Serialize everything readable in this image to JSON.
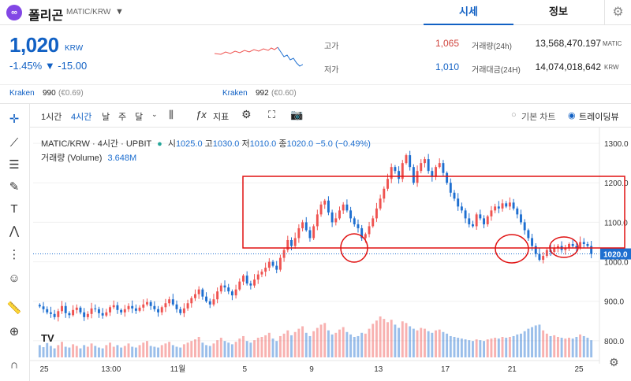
{
  "header": {
    "logo_text": "∞",
    "coin_name": "폴리곤",
    "pair": "MATIC/KRW",
    "tabs": [
      "시세",
      "정보"
    ]
  },
  "price": {
    "current": "1,020",
    "unit": "KRW",
    "change_pct": "-1.45%",
    "change_abs": "▼ -15.00"
  },
  "stats": {
    "high_label": "고가",
    "high": "1,065",
    "low_label": "저가",
    "low": "1,010",
    "vol_label": "거래량(24h)",
    "vol": "13,568,470.197",
    "vol_unit": "MATIC",
    "amt_label": "거래대금(24H)",
    "amt": "14,074,018,642",
    "amt_unit": "KRW"
  },
  "kraken": [
    {
      "name": "Kraken",
      "value": "990",
      "sub": "(€0.69)"
    },
    {
      "name": "Kraken",
      "value": "992",
      "sub": "(€0.60)"
    }
  ],
  "toolbar": {
    "interval_1h": "1시간",
    "interval_4h": "4시간",
    "day": "날",
    "week": "주",
    "month": "달",
    "indicator": "지표",
    "basic_chart": "기본 차트",
    "tradingview": "트레이딩뷰"
  },
  "legend": {
    "symbol": "MATIC/KRW · 4시간 · UPBIT",
    "o_label": "시",
    "o": "1025.0",
    "h_label": "고",
    "h": "1030.0",
    "l_label": "저",
    "l": "1010.0",
    "c_label": "종",
    "c": "1020.0",
    "chg": "−5.0 (−0.49%)",
    "volume_label": "거래량 (Volume)",
    "volume": "3.648M"
  },
  "colors": {
    "up": "#ef5350",
    "down": "#1e6fd0",
    "accent": "#1261c4",
    "annotation": "#e01010"
  },
  "chart_data": {
    "type": "candlestick",
    "ylim": [
      750,
      1340
    ],
    "y_ticks": [
      800,
      900,
      1000,
      1100,
      1200,
      1300
    ],
    "y_tick_labels": [
      "800.0",
      "900.0",
      "1000.0",
      "1100.0",
      "1200.0",
      "1300.0"
    ],
    "x_tick_labels": [
      "25",
      "13:00",
      "11월",
      "5",
      "9",
      "13",
      "17",
      "21",
      "25"
    ],
    "last_price_label": "1020.0",
    "last_price": 1020,
    "close": [
      887,
      880,
      872,
      868,
      860,
      875,
      888,
      870,
      865,
      878,
      884,
      872,
      860,
      868,
      882,
      880,
      870,
      864,
      872,
      885,
      890,
      878,
      872,
      880,
      888,
      882,
      876,
      884,
      892,
      898,
      888,
      880,
      872,
      885,
      895,
      905,
      892,
      880,
      870,
      882,
      895,
      908,
      918,
      930,
      912,
      900,
      892,
      905,
      925,
      940,
      935,
      925,
      915,
      930,
      950,
      965,
      945,
      940,
      955,
      968,
      975,
      985,
      1000,
      990,
      980,
      1010,
      1030,
      1055,
      1040,
      1060,
      1085,
      1100,
      1080,
      1060,
      1090,
      1120,
      1145,
      1155,
      1125,
      1100,
      1110,
      1130,
      1145,
      1130,
      1110,
      1095,
      1085,
      1060,
      1070,
      1090,
      1110,
      1135,
      1160,
      1185,
      1210,
      1240,
      1230,
      1210,
      1250,
      1270,
      1240,
      1200,
      1230,
      1250,
      1260,
      1230,
      1215,
      1240,
      1250,
      1225,
      1200,
      1175,
      1160,
      1140,
      1130,
      1110,
      1095,
      1090,
      1120,
      1110,
      1095,
      1115,
      1130,
      1140,
      1135,
      1148,
      1140,
      1150,
      1135,
      1120,
      1100,
      1080,
      1060,
      1040,
      1020,
      1005,
      1015,
      1030,
      1025,
      1035,
      1040,
      1030,
      1035,
      1045,
      1040,
      1035,
      1050,
      1045,
      1040,
      1020
    ],
    "volume": [
      0.3,
      0.25,
      0.35,
      0.28,
      0.22,
      0.3,
      0.38,
      0.26,
      0.24,
      0.32,
      0.28,
      0.22,
      0.3,
      0.26,
      0.34,
      0.28,
      0.24,
      0.22,
      0.3,
      0.36,
      0.26,
      0.3,
      0.24,
      0.28,
      0.34,
      0.26,
      0.24,
      0.3,
      0.36,
      0.4,
      0.28,
      0.26,
      0.24,
      0.3,
      0.34,
      0.38,
      0.3,
      0.26,
      0.24,
      0.32,
      0.36,
      0.4,
      0.44,
      0.5,
      0.36,
      0.3,
      0.28,
      0.34,
      0.42,
      0.48,
      0.4,
      0.36,
      0.32,
      0.38,
      0.46,
      0.52,
      0.4,
      0.36,
      0.42,
      0.48,
      0.5,
      0.54,
      0.6,
      0.46,
      0.4,
      0.52,
      0.58,
      0.66,
      0.54,
      0.62,
      0.7,
      0.76,
      0.6,
      0.52,
      0.64,
      0.72,
      0.8,
      0.84,
      0.66,
      0.56,
      0.6,
      0.68,
      0.74,
      0.62,
      0.56,
      0.5,
      0.52,
      0.6,
      0.58,
      0.7,
      0.82,
      0.9,
      1.0,
      0.94,
      0.86,
      0.92,
      0.8,
      0.72,
      0.88,
      0.84,
      0.76,
      0.7,
      0.66,
      0.72,
      0.7,
      0.64,
      0.6,
      0.66,
      0.68,
      0.62,
      0.58,
      0.52,
      0.5,
      0.48,
      0.46,
      0.44,
      0.42,
      0.4,
      0.44,
      0.42,
      0.4,
      0.44,
      0.46,
      0.48,
      0.46,
      0.5,
      0.48,
      0.5,
      0.52,
      0.56,
      0.58,
      0.64,
      0.7,
      0.74,
      0.78,
      0.8,
      0.66,
      0.58,
      0.52,
      0.54,
      0.5,
      0.48,
      0.46,
      0.48,
      0.46,
      0.5,
      0.56,
      0.52,
      0.48,
      0.42
    ]
  }
}
